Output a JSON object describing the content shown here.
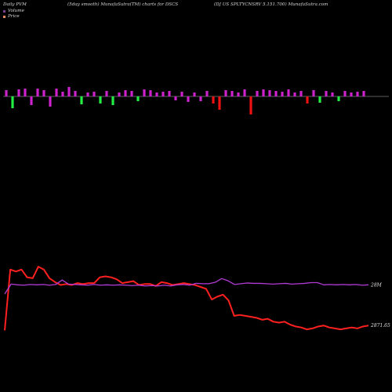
{
  "header": {
    "left": "Daily PVM",
    "middle": "(5day smooth) MunafaSutra(TM) charts for DSCS",
    "right": "(DJ US SPLTYCNSRV 5.151.700) MunafaSutra.com"
  },
  "legend": {
    "volume_label": "Volume",
    "price_label": "Price",
    "volume_color": "#7b3f8f",
    "price_color": "#e68a5c"
  },
  "colors": {
    "background": "#000000",
    "price_line": "#ff2020",
    "volume_line": "#b23bd6",
    "bar_up": "#cc22cc",
    "bar_down_red": "#ee1111",
    "bar_green": "#22ee44",
    "baseline": "#bbbbbb"
  },
  "chart_data": [
    {
      "type": "bar",
      "title": "",
      "values": [
        8,
        -15,
        9,
        10,
        -11,
        10,
        8,
        -13,
        10,
        6,
        12,
        7,
        -10,
        5,
        6,
        -9,
        7,
        -11,
        5,
        8,
        7,
        -6,
        9,
        8,
        5,
        6,
        7,
        -5,
        6,
        -7,
        5,
        -6,
        7,
        -9,
        -17,
        8,
        7,
        5,
        9,
        -23,
        7,
        9,
        8,
        7,
        6,
        9,
        5,
        7,
        -9,
        8,
        -8,
        7,
        5,
        -6,
        7,
        5,
        6,
        7
      ],
      "signs": [
        "up",
        "green",
        "up",
        "up",
        "up",
        "up",
        "up",
        "up",
        "up",
        "up",
        "up",
        "up",
        "green",
        "up",
        "up",
        "green",
        "up",
        "green",
        "up",
        "up",
        "up",
        "green",
        "up",
        "up",
        "up",
        "up",
        "up",
        "up",
        "up",
        "up",
        "up",
        "up",
        "up",
        "red",
        "red",
        "up",
        "up",
        "up",
        "up",
        "red",
        "up",
        "up",
        "up",
        "up",
        "up",
        "up",
        "up",
        "up",
        "red",
        "up",
        "green",
        "up",
        "up",
        "green",
        "up",
        "up",
        "up",
        "up"
      ]
    },
    {
      "type": "line",
      "title": "",
      "y_range": [
        2800,
        3450
      ],
      "series": [
        {
          "values": [
            2835,
            3150,
            3140,
            3150,
            3110,
            3105,
            3165,
            3150,
            3105,
            3085,
            3070,
            3075,
            3070,
            3080,
            3075,
            3080,
            3080,
            3110,
            3115,
            3110,
            3100,
            3080,
            3085,
            3090,
            3070,
            3075,
            3075,
            3065,
            3085,
            3080,
            3070,
            3075,
            3080,
            3075,
            3070,
            3060,
            3050,
            2995,
            3010,
            3020,
            2990,
            2910,
            2915,
            2910,
            2905,
            2900,
            2890,
            2895,
            2880,
            2875,
            2880,
            2865,
            2855,
            2850,
            2840,
            2845,
            2855,
            2860,
            2850,
            2845,
            2840,
            2845,
            2850,
            2845,
            2855,
            2860
          ]
        }
      ],
      "end_label": "2871.65"
    },
    {
      "type": "line",
      "title": "",
      "series": [
        {
          "values": [
            2.2,
            29,
            27,
            26,
            28,
            27,
            28,
            26,
            28,
            40,
            29,
            28,
            27,
            26,
            28,
            26,
            27,
            26,
            27,
            26,
            25,
            26,
            24,
            25,
            24,
            26,
            24,
            27,
            28,
            26,
            31,
            30,
            30,
            34,
            44,
            38,
            28,
            30,
            32,
            31,
            31,
            30,
            29,
            30,
            31,
            29,
            30,
            31,
            33,
            33,
            27,
            28,
            27,
            28,
            27,
            28,
            26,
            27
          ]
        }
      ],
      "end_label": "28M"
    }
  ]
}
